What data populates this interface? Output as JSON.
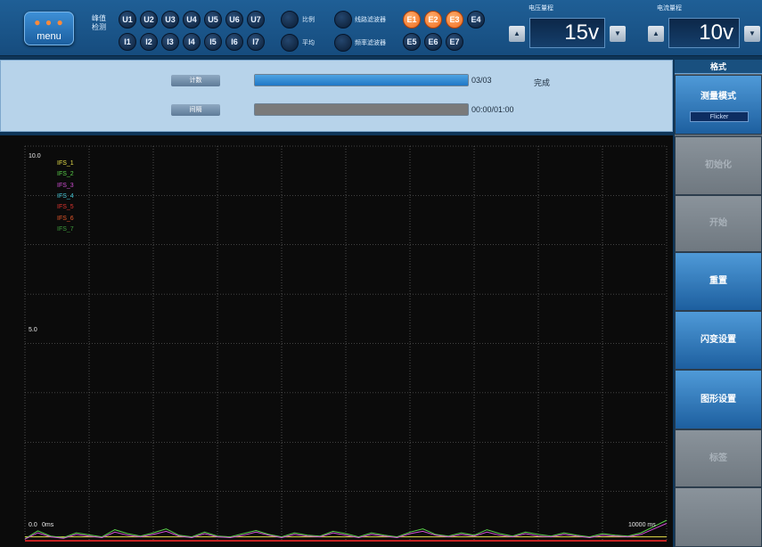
{
  "topbar": {
    "menu_label": "menu",
    "peak_detect_label": "峰值\n检测",
    "voltage_channels": [
      "U1",
      "U2",
      "U3",
      "U4",
      "U5",
      "U6",
      "U7"
    ],
    "current_channels": [
      "I1",
      "I2",
      "I3",
      "I4",
      "I5",
      "I6",
      "I7"
    ],
    "toggles": [
      {
        "label": "比例"
      },
      {
        "label": "平均"
      },
      {
        "label": "线路滤波器"
      },
      {
        "label": "频率滤波器"
      }
    ],
    "e_channels_top": [
      {
        "label": "E1",
        "active": true
      },
      {
        "label": "E2",
        "active": true
      },
      {
        "label": "E3",
        "active": true
      },
      {
        "label": "E4",
        "active": false
      }
    ],
    "e_channels_bottom": [
      {
        "label": "E5",
        "active": false
      },
      {
        "label": "E6",
        "active": false
      },
      {
        "label": "E7",
        "active": false
      }
    ],
    "voltage_range": {
      "title": "电压量程",
      "value": "15v",
      "dec": "▲",
      "inc": "▼"
    },
    "current_range": {
      "title": "电流量程",
      "value": "10v",
      "dec": "▲",
      "inc": "▼"
    }
  },
  "progress": {
    "count_label": "计数",
    "count_text": "03/03",
    "count_fraction": 1.0,
    "status": "完成",
    "interval_label": "间隔",
    "interval_text": "00:00/01:00",
    "interval_fraction": 0.0
  },
  "sidebar": {
    "header": "格式",
    "mode_label": "测量模式",
    "mode_value": "Flicker",
    "buttons": [
      {
        "label": "初始化",
        "state": "disabled"
      },
      {
        "label": "开始",
        "state": "disabled"
      },
      {
        "label": "重置",
        "state": "active"
      },
      {
        "label": "闪变设置",
        "state": "active"
      },
      {
        "label": "图形设置",
        "state": "active"
      },
      {
        "label": "标签",
        "state": "disabled"
      },
      {
        "label": "",
        "state": "blank"
      }
    ]
  },
  "colors": {
    "accent": "#2a74bf",
    "active_channel": "#f06a1c",
    "chart_bg": "#0b0b0b",
    "axis_line": "#ff2a2a"
  },
  "chart_data": {
    "type": "line",
    "title": "",
    "ylim": [
      0,
      10
    ],
    "xlim": [
      0,
      10000
    ],
    "y_tick_labels": [
      "10.0",
      "5.0",
      "0.0"
    ],
    "x_tick_labels": [
      "0ms",
      "10000 ms"
    ],
    "grid": true,
    "legend_position": "top-left",
    "series": [
      {
        "name": "IFS_1",
        "color": "#e8e04a",
        "values": [
          0.1,
          0.1,
          0.1,
          0.1,
          0.1,
          0.1,
          0.1,
          0.1,
          0.1,
          0.1,
          0.1,
          0.1,
          0.1,
          0.1,
          0.1,
          0.1,
          0.1,
          0.1,
          0.1,
          0.1,
          0.1,
          0.1,
          0.1,
          0.1,
          0.1,
          0.1,
          0.1,
          0.1,
          0.1,
          0.1,
          0.1,
          0.1,
          0.1,
          0.1,
          0.1,
          0.1,
          0.1,
          0.1,
          0.1,
          0.1,
          0.1,
          0.1,
          0.1,
          0.1,
          0.1,
          0.1,
          0.1,
          0.1,
          0.1,
          0.1,
          0.1
        ]
      },
      {
        "name": "IFS_2",
        "color": "#5bd14b",
        "values": [
          0.05,
          0.25,
          0.12,
          0.08,
          0.2,
          0.15,
          0.1,
          0.28,
          0.18,
          0.12,
          0.2,
          0.3,
          0.14,
          0.1,
          0.22,
          0.12,
          0.1,
          0.18,
          0.26,
          0.16,
          0.1,
          0.2,
          0.14,
          0.12,
          0.24,
          0.18,
          0.1,
          0.2,
          0.14,
          0.1,
          0.22,
          0.3,
          0.16,
          0.12,
          0.2,
          0.14,
          0.28,
          0.18,
          0.12,
          0.22,
          0.16,
          0.12,
          0.2,
          0.14,
          0.1,
          0.18,
          0.14,
          0.12,
          0.2,
          0.36,
          0.52
        ]
      },
      {
        "name": "IFS_3",
        "color": "#d34fd6",
        "values": [
          0.04,
          0.2,
          0.1,
          0.06,
          0.16,
          0.12,
          0.08,
          0.22,
          0.14,
          0.1,
          0.16,
          0.24,
          0.12,
          0.08,
          0.18,
          0.1,
          0.08,
          0.14,
          0.22,
          0.14,
          0.08,
          0.16,
          0.12,
          0.1,
          0.2,
          0.14,
          0.08,
          0.16,
          0.12,
          0.08,
          0.18,
          0.24,
          0.14,
          0.1,
          0.16,
          0.12,
          0.22,
          0.14,
          0.1,
          0.18,
          0.12,
          0.1,
          0.16,
          0.12,
          0.08,
          0.14,
          0.12,
          0.1,
          0.16,
          0.3,
          0.44
        ]
      },
      {
        "name": "IFS_4",
        "color": "#46c9d8",
        "values": []
      },
      {
        "name": "IFS_5",
        "color": "#e0342f",
        "values": []
      },
      {
        "name": "IFS_6",
        "color": "#e8582a",
        "values": []
      },
      {
        "name": "IFS_7",
        "color": "#3f9d3c",
        "values": []
      }
    ]
  }
}
